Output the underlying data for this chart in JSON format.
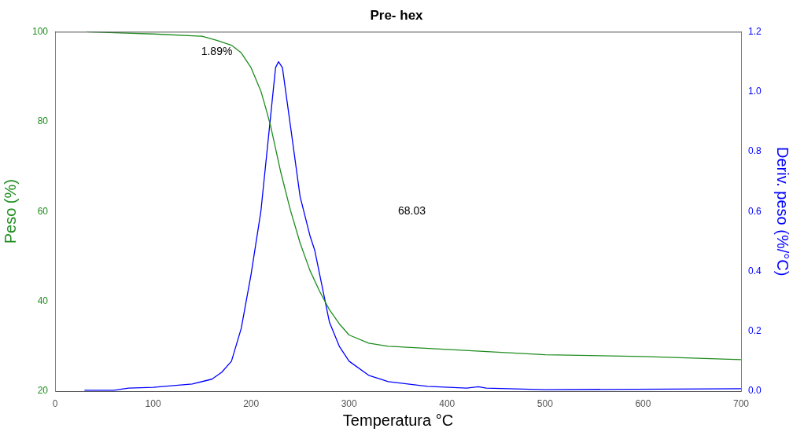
{
  "chart_data": {
    "type": "line",
    "title": "Pre- hex",
    "xlabel": "Temperatura °C",
    "ylabel": "Peso (%)",
    "y2label": "Deriv. peso (%/°C)",
    "series": [
      {
        "color": "#1e8c1e",
        "x": [
          32,
          100,
          150,
          165,
          180,
          190,
          200,
          210,
          215,
          220,
          230,
          240,
          250,
          260,
          270,
          280,
          290,
          300,
          320,
          340,
          400,
          500,
          600,
          700
        ],
        "values": [
          100,
          99.5,
          99.0,
          98.1,
          97,
          95.3,
          92,
          86.8,
          83,
          79,
          69,
          60.4,
          53,
          46.9,
          42.2,
          38.1,
          35,
          32.5,
          30.7,
          30.0,
          29.3,
          28.1,
          27.7,
          27.0
        ]
      },
      {
        "color": "#0000ff",
        "axis": "y2",
        "x": [
          30,
          60,
          75,
          100,
          140,
          160,
          170,
          180,
          190,
          200,
          210,
          220,
          225,
          228,
          232,
          240,
          250,
          260,
          265,
          270,
          280,
          290,
          300,
          320,
          340,
          380,
          420,
          432,
          440,
          500,
          700
        ],
        "values": [
          0.003,
          0.003,
          0.01,
          0.013,
          0.024,
          0.04,
          0.063,
          0.1,
          0.21,
          0.39,
          0.6,
          0.92,
          1.08,
          1.1,
          1.08,
          0.89,
          0.65,
          0.52,
          0.47,
          0.39,
          0.23,
          0.15,
          0.1,
          0.053,
          0.032,
          0.016,
          0.01,
          0.015,
          0.01,
          0.005,
          0.008
        ]
      }
    ],
    "xlim": [
      0,
      700
    ],
    "xticks": [
      0,
      100,
      200,
      300,
      400,
      500,
      600,
      700
    ],
    "ylim": [
      20,
      100
    ],
    "yticks": [
      20,
      40,
      60,
      80,
      100
    ],
    "y2lim": [
      0,
      1.2
    ],
    "y2ticks": [
      {
        "value": 0,
        "label": "0.0"
      },
      0.2,
      0.4,
      0.6,
      0.8,
      {
        "value": 1,
        "label": "1.0"
      },
      1.2
    ],
    "annotations": [
      {
        "text": "1.89%",
        "x": 165,
        "y": 98.1
      },
      "68.03"
    ],
    "grid": false,
    "legend": false,
    "marker": "none",
    "line_style": "solid"
  }
}
